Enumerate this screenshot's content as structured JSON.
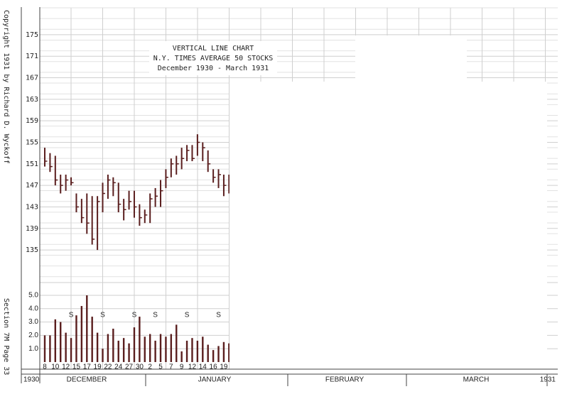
{
  "chart_data": {
    "type": "vertical-line",
    "title": "VERTICAL LINE CHART",
    "subtitle": "N.Y. TIMES AVERAGE 50 STOCKS",
    "period": "December 1930 - March 1931",
    "side_notes": [
      "Copyright 1931 by Richard D. Wyckoff",
      "Section 7M Page 33"
    ],
    "year_labels": [
      "1930",
      "1931"
    ],
    "month_labels": [
      "DECEMBER",
      "JANUARY",
      "FEBRUARY",
      "MARCH"
    ],
    "categories": [
      "8",
      null,
      "10",
      null,
      "12",
      null,
      "15",
      null,
      "17",
      null,
      "19",
      null,
      "22",
      null,
      "24",
      null,
      "27",
      null,
      "30",
      null,
      "2",
      null,
      "5",
      null,
      "7",
      null,
      "9",
      null,
      "12",
      null,
      "14",
      null,
      "16",
      null,
      "19",
      null
    ],
    "day_marks": [
      null,
      null,
      null,
      null,
      null,
      "S",
      null,
      null,
      null,
      null,
      null,
      "S",
      null,
      null,
      null,
      null,
      null,
      "S",
      null,
      null,
      null,
      "S",
      null,
      null,
      null,
      null,
      null,
      "S",
      null,
      null,
      null,
      null,
      null,
      "S",
      null,
      null
    ],
    "series": [
      {
        "color": "#5a1e1e",
        "values": [
          154.0,
          153.0,
          152.5,
          149.0,
          149.0,
          148.5,
          145.5,
          144.5,
          145.5,
          145.0,
          145.0,
          147.5,
          149.0,
          148.5,
          147.5,
          144.5,
          146.0,
          146.0,
          143.5,
          142.5,
          145.5,
          146.5,
          148.0,
          150.0,
          152.0,
          152.5,
          154.0,
          154.5,
          154.5,
          156.5,
          155.0,
          153.5,
          150.0,
          150.0,
          149.0,
          149.0
        ]
      },
      {
        "color": "#5a1e1e",
        "values": [
          150.5,
          149.5,
          147.0,
          145.5,
          146.0,
          147.0,
          142.0,
          140.0,
          138.0,
          136.0,
          135.0,
          142.0,
          144.5,
          145.0,
          142.0,
          140.5,
          142.5,
          141.0,
          139.5,
          140.0,
          140.0,
          143.0,
          143.0,
          146.5,
          148.5,
          149.0,
          150.0,
          151.5,
          151.5,
          152.5,
          151.5,
          149.5,
          147.5,
          146.5,
          145.0,
          145.5
        ]
      },
      {
        "color": "#5a1e1e",
        "values": [
          151.5,
          150.5,
          148.0,
          147.0,
          148.0,
          147.5,
          143.0,
          141.0,
          140.0,
          137.0,
          144.0,
          145.5,
          148.0,
          147.5,
          143.5,
          142.5,
          144.0,
          143.0,
          141.0,
          141.5,
          144.5,
          145.0,
          146.0,
          148.5,
          151.0,
          151.0,
          152.0,
          153.5,
          152.0,
          155.0,
          154.0,
          151.0,
          148.5,
          149.0,
          147.0,
          147.5
        ]
      },
      {
        "color": "#5a1e1e",
        "axis": "y2",
        "values": [
          2.0,
          2.0,
          3.2,
          3.0,
          2.2,
          1.8,
          3.5,
          4.2,
          5.0,
          3.4,
          2.2,
          1.0,
          2.1,
          2.5,
          1.6,
          1.8,
          1.4,
          2.6,
          3.4,
          1.9,
          2.1,
          1.6,
          2.1,
          1.9,
          2.1,
          2.8,
          0.8,
          1.6,
          1.8,
          1.6,
          1.9,
          1.3,
          0.9,
          1.2,
          1.5,
          1.4
        ]
      }
    ],
    "ylim": [
      130,
      180
    ],
    "yticks": [
      175,
      171,
      167,
      163,
      159,
      155,
      151,
      147,
      143,
      139,
      135
    ],
    "y2lim": [
      0,
      5
    ],
    "y2ticks": [
      {
        "value": 5,
        "label": "5.0"
      },
      {
        "value": 4,
        "label": "4.0"
      },
      {
        "value": 3,
        "label": "3.0"
      },
      {
        "value": 2,
        "label": "2.0"
      },
      {
        "value": 1,
        "label": "1.0"
      }
    ],
    "grid": true
  }
}
